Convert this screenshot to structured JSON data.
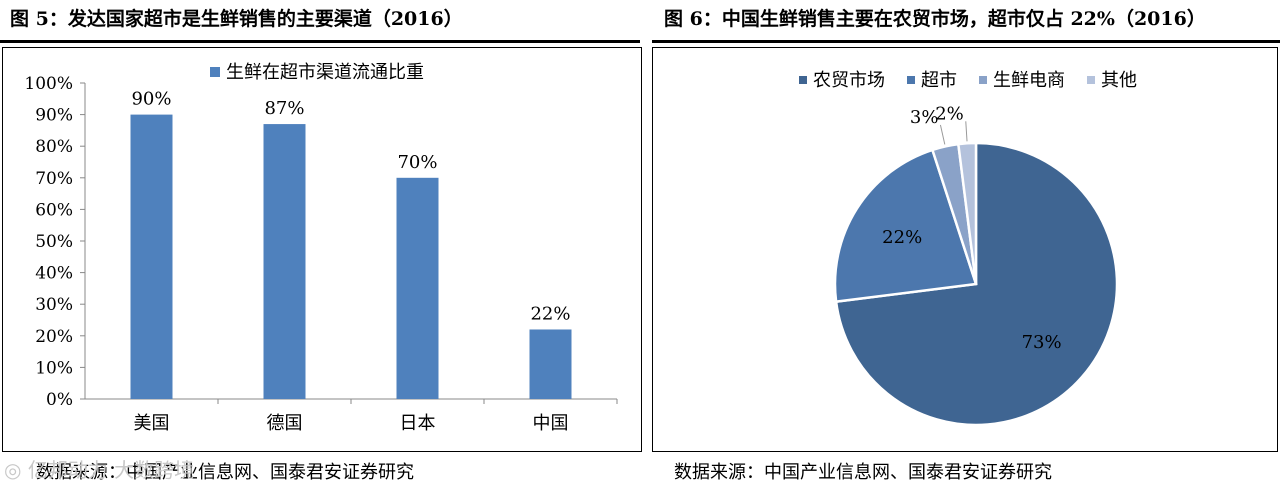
{
  "left_panel": {
    "title": "图 5：发达国家超市是生鲜销售的主要渠道（2016）",
    "source": "数据来源：中国产业信息网、国泰君安证券研究"
  },
  "right_panel": {
    "title": "图 6：中国生鲜销售主要在农贸市场，超市仅占 22%（2016）",
    "source": "数据来源：中国产业信息网、国泰君安证券研究"
  },
  "watermark": "亿邦动力 大数跨境",
  "chart_data": [
    {
      "type": "bar",
      "categories": [
        "美国",
        "德国",
        "日本",
        "中国"
      ],
      "series": [
        {
          "name": "生鲜在超市渠道流通比重",
          "values": [
            90,
            87,
            70,
            22
          ],
          "labels": [
            "90%",
            "87%",
            "70%",
            "22%"
          ],
          "color": "#4f81bd"
        }
      ],
      "ylim": [
        0,
        100
      ],
      "yticks": [
        "0%",
        "10%",
        "20%",
        "30%",
        "40%",
        "50%",
        "60%",
        "70%",
        "80%",
        "90%",
        "100%"
      ],
      "legend": "top",
      "grid": false
    },
    {
      "type": "pie",
      "categories": [
        "农贸市场",
        "超市",
        "生鲜电商",
        "其他"
      ],
      "values": [
        73,
        22,
        3,
        2
      ],
      "labels": [
        "73%",
        "22%",
        "3%",
        "2%"
      ],
      "colors": [
        "#3f6592",
        "#4c77ad",
        "#8aa2c8",
        "#b4c2dc"
      ],
      "legend": "top"
    }
  ]
}
